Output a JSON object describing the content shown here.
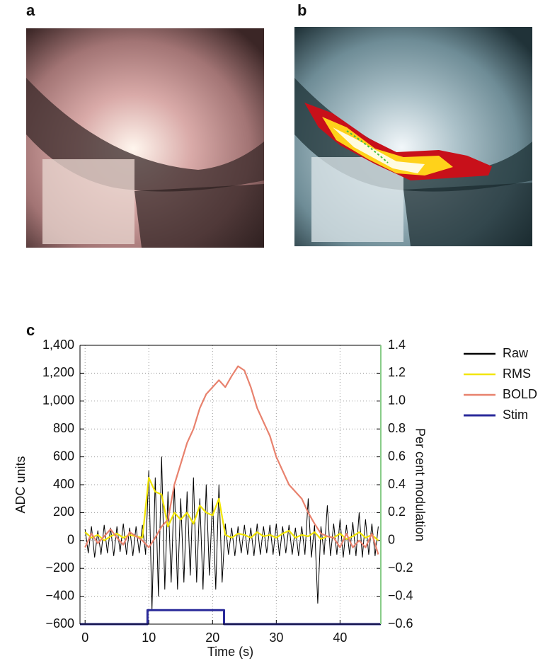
{
  "panel_labels": {
    "a": "a",
    "b": "b",
    "c": "c"
  },
  "chart_data": {
    "type": "line",
    "xlabel": "Time (s)",
    "ylabel": "ADC units",
    "y2label": "Per cent modulation",
    "xlim": [
      -0.8,
      46.4
    ],
    "xticks": [
      0,
      10,
      20,
      30,
      40
    ],
    "ylim": [
      -600,
      1400
    ],
    "yticks": [
      {
        "value": -600,
        "label": "−600"
      },
      {
        "value": -400,
        "label": "−400"
      },
      {
        "value": -200,
        "label": "−200"
      },
      0,
      200,
      400,
      600,
      800,
      {
        "value": 1000,
        "label": "1,000"
      },
      {
        "value": 1200,
        "label": "1,200"
      },
      {
        "value": 1400,
        "label": "1,400"
      }
    ],
    "y2lim": [
      -0.6,
      1.4
    ],
    "y2ticks": [
      {
        "value": -0.6,
        "label": "−0.6"
      },
      {
        "value": -0.4,
        "label": "−0.4"
      },
      {
        "value": -0.2,
        "label": "−0.2"
      },
      0,
      0.2,
      0.4,
      0.6,
      0.8,
      {
        "value": 1.0,
        "label": "1.0"
      },
      1.2,
      1.4
    ],
    "grid": true,
    "legend": "outside-right",
    "series": [
      {
        "name": "Raw",
        "color": "#000000",
        "x": [
          0,
          0.5,
          1,
          1.5,
          2,
          2.5,
          3,
          3.5,
          4,
          4.5,
          5,
          5.5,
          6,
          6.5,
          7,
          7.5,
          8,
          8.5,
          9,
          9.5,
          10,
          10.5,
          11,
          11.5,
          12,
          12.5,
          13,
          13.5,
          14,
          14.5,
          15,
          15.5,
          16,
          16.5,
          17,
          17.5,
          18,
          18.5,
          19,
          19.5,
          20,
          20.5,
          21,
          21.5,
          22,
          22.5,
          23,
          23.5,
          24,
          24.5,
          25,
          25.5,
          26,
          26.5,
          27,
          27.5,
          28,
          28.5,
          29,
          29.5,
          30,
          30.5,
          31,
          31.5,
          32,
          32.5,
          33,
          33.5,
          34,
          34.5,
          35,
          35.5,
          36,
          36.5,
          37,
          37.5,
          38,
          38.5,
          39,
          39.5,
          40,
          40.5,
          41,
          41.5,
          42,
          42.5,
          43,
          43.5,
          44,
          44.5,
          45,
          45.5,
          46
        ],
        "values": [
          80,
          -90,
          100,
          -120,
          70,
          -100,
          110,
          -90,
          90,
          -110,
          100,
          -80,
          120,
          -100,
          90,
          -110,
          100,
          -90,
          110,
          -100,
          500,
          -500,
          450,
          -400,
          600,
          -350,
          350,
          -300,
          400,
          -350,
          300,
          -300,
          350,
          -250,
          450,
          -300,
          300,
          -350,
          400,
          -250,
          300,
          -350,
          400,
          -300,
          120,
          -100,
          90,
          -110,
          100,
          -90,
          110,
          -100,
          90,
          -110,
          120,
          -100,
          100,
          -90,
          110,
          -100,
          120,
          -110,
          100,
          -90,
          110,
          -100,
          90,
          -110,
          100,
          -100,
          300,
          -120,
          110,
          -450,
          100,
          -100,
          250,
          -110,
          120,
          -100,
          150,
          -120,
          110,
          -100,
          130,
          -110,
          200,
          -120,
          150,
          -100,
          120,
          -110,
          100
        ]
      },
      {
        "name": "RMS",
        "color": "#f2e600",
        "x": [
          0,
          1,
          2,
          3,
          4,
          5,
          6,
          7,
          8,
          9,
          10,
          11,
          12,
          13,
          14,
          15,
          16,
          17,
          18,
          19,
          20,
          21,
          22,
          23,
          24,
          25,
          26,
          27,
          28,
          29,
          30,
          31,
          32,
          33,
          34,
          35,
          36,
          37,
          38,
          39,
          40,
          41,
          42,
          43,
          44,
          45,
          46
        ],
        "values": [
          60,
          20,
          40,
          0,
          30,
          50,
          20,
          40,
          30,
          20,
          450,
          350,
          330,
          100,
          200,
          150,
          200,
          120,
          250,
          200,
          180,
          300,
          40,
          20,
          50,
          40,
          20,
          60,
          30,
          40,
          20,
          50,
          70,
          20,
          40,
          30,
          60,
          10,
          30,
          20,
          50,
          10,
          30,
          60,
          20,
          40,
          0
        ]
      },
      {
        "name": "BOLD",
        "color": "#e8826e",
        "axis": "y2",
        "x": [
          0,
          1,
          2,
          3,
          4,
          5,
          6,
          7,
          8,
          9,
          10,
          11,
          12,
          13,
          14,
          15,
          16,
          17,
          18,
          19,
          20,
          21,
          22,
          23,
          24,
          25,
          26,
          27,
          28,
          29,
          30,
          31,
          32,
          33,
          34,
          35,
          36,
          37,
          38,
          39,
          40,
          41,
          42,
          43,
          44,
          45,
          46
        ],
        "values": [
          -0.05,
          0.05,
          -0.02,
          0.03,
          0.08,
          0.02,
          -0.03,
          0.06,
          0.03,
          0.0,
          -0.05,
          0.02,
          0.1,
          0.15,
          0.4,
          0.55,
          0.7,
          0.8,
          0.95,
          1.05,
          1.1,
          1.15,
          1.1,
          1.18,
          1.25,
          1.22,
          1.1,
          0.95,
          0.85,
          0.75,
          0.6,
          0.5,
          0.4,
          0.35,
          0.3,
          0.2,
          0.12,
          0.05,
          0.03,
          0.02,
          -0.05,
          0.05,
          -0.05,
          0.0,
          -0.05,
          0.05,
          -0.1
        ]
      },
      {
        "name": "Stim",
        "color": "#2a2a9a",
        "x": [
          -0.8,
          9.8,
          9.8,
          21.8,
          21.8,
          46.4
        ],
        "values": [
          -600,
          -600,
          -500,
          -500,
          -600,
          -600
        ]
      }
    ]
  }
}
